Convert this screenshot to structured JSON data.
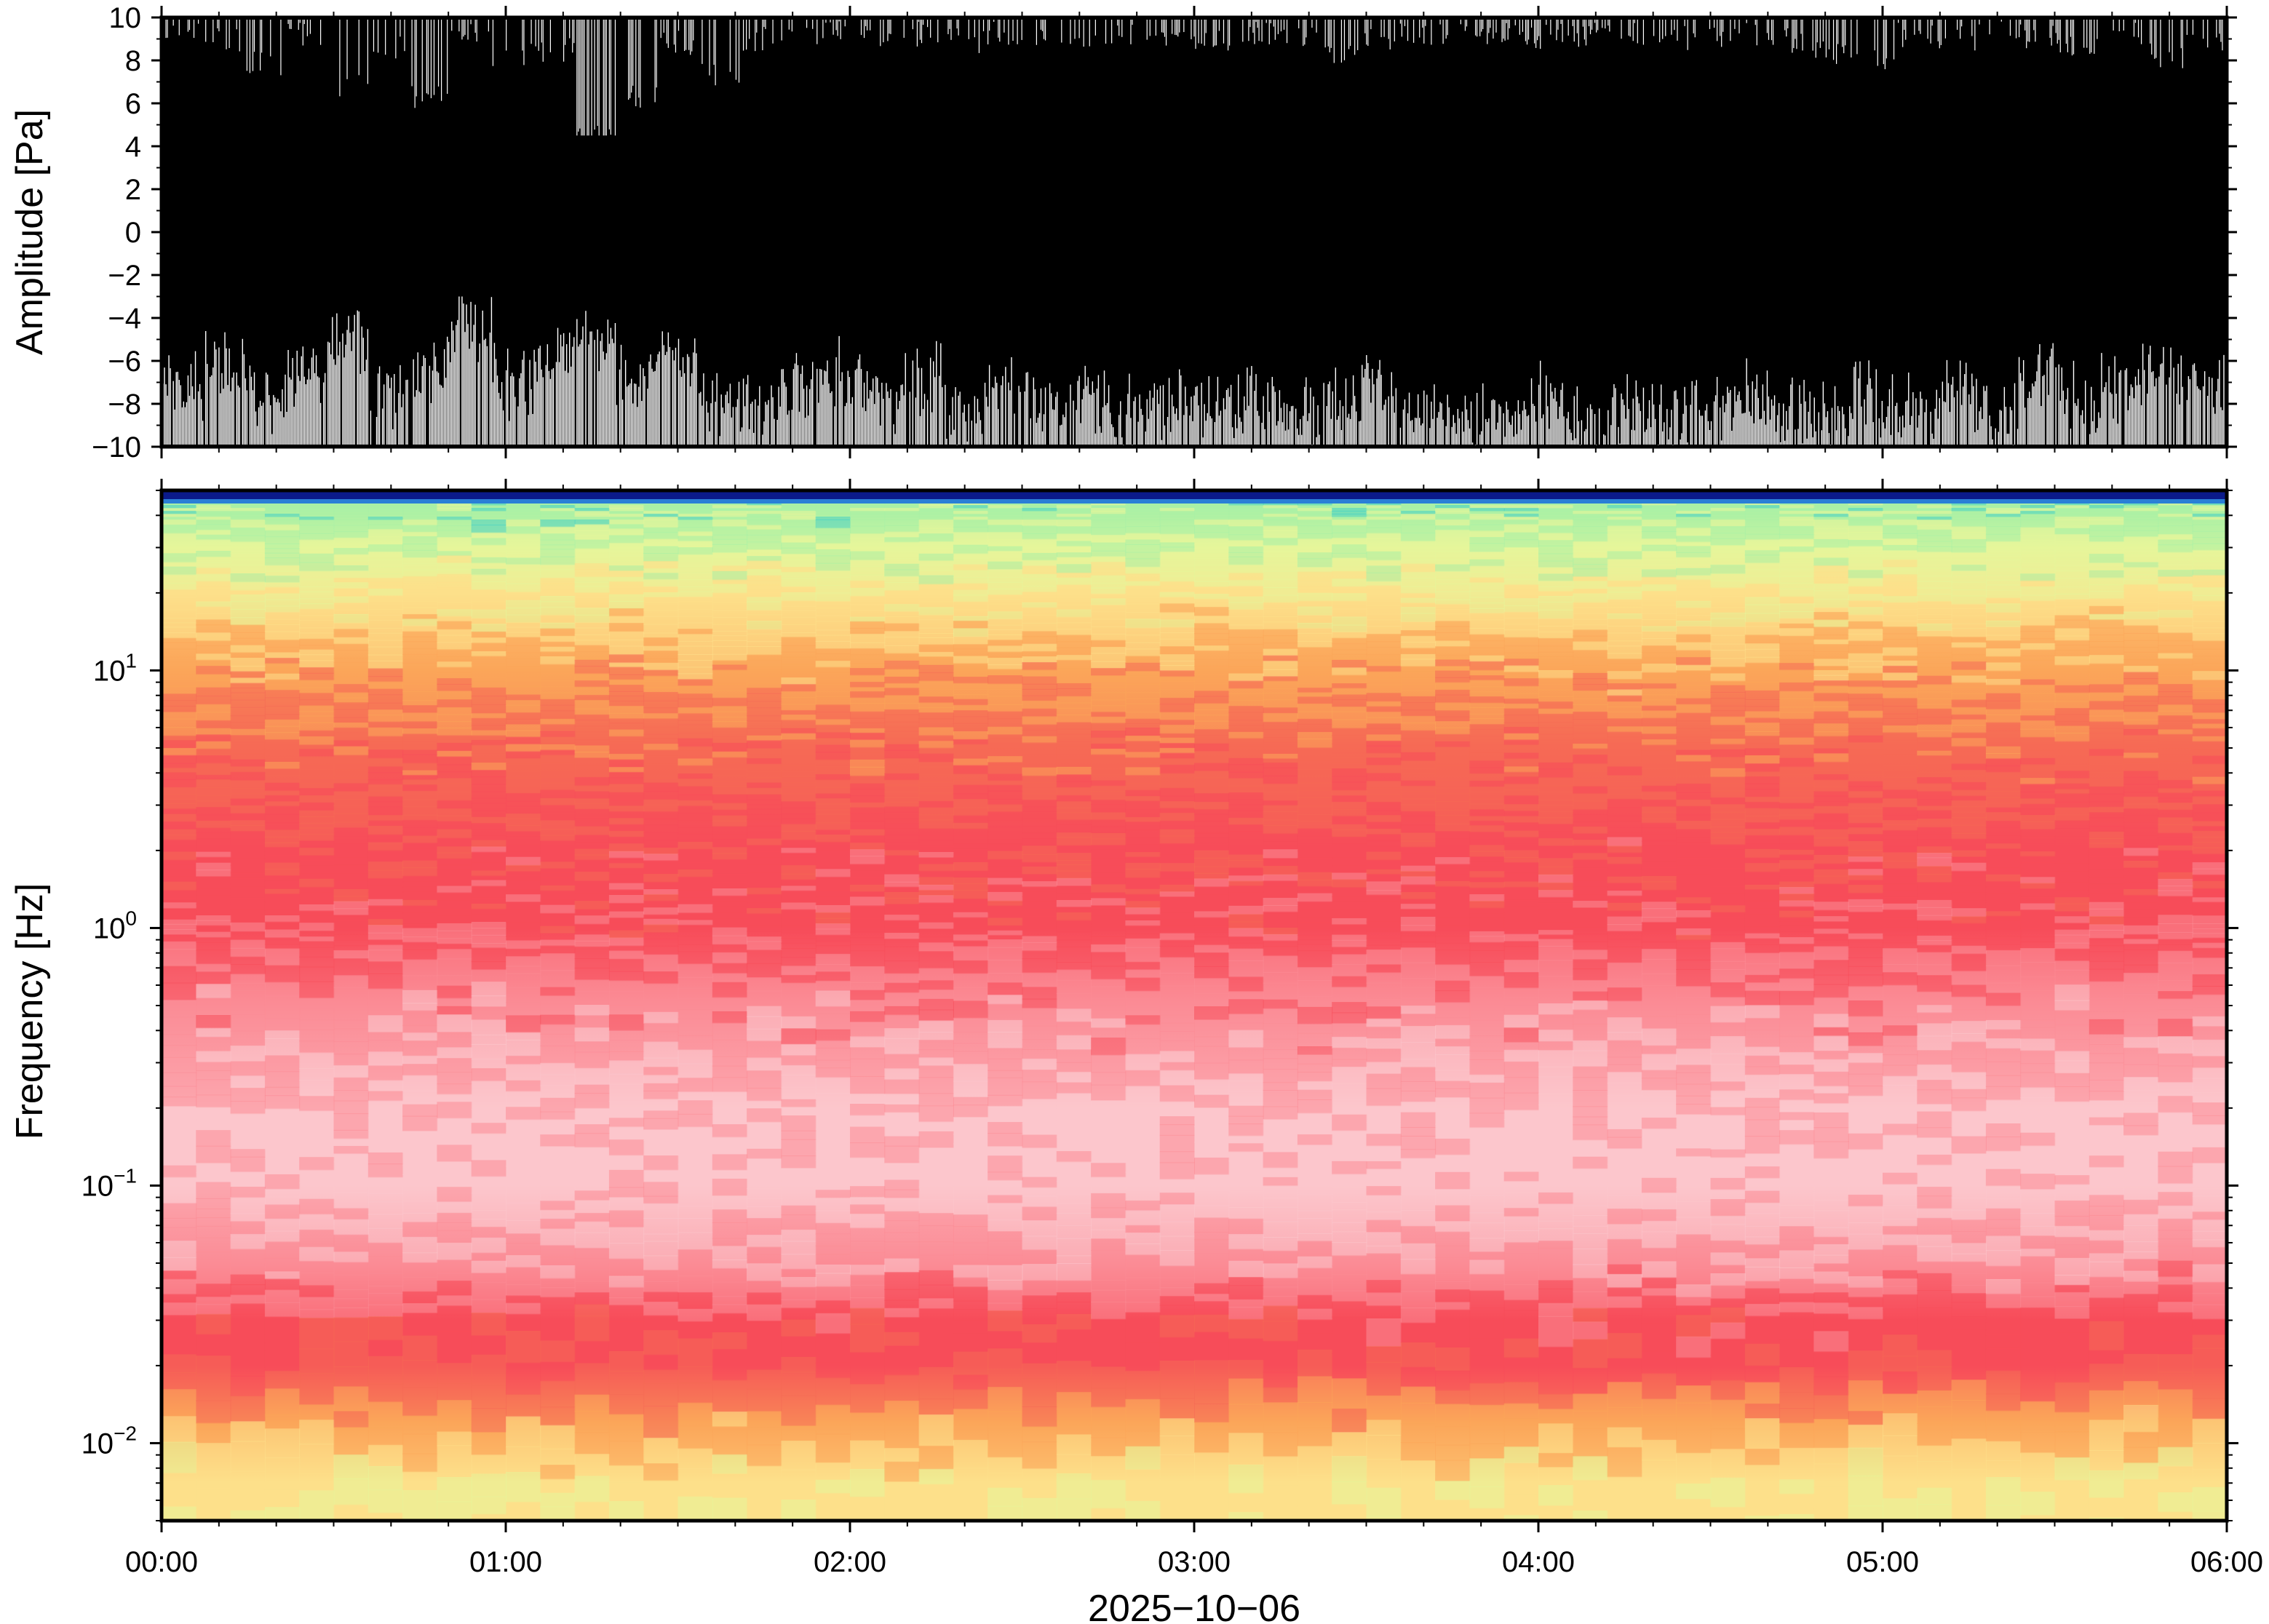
{
  "chart_data": [
    {
      "type": "line",
      "name": "waveform",
      "ylabel": "Amplitude [Pa]",
      "ylim": [
        -10,
        10
      ],
      "yticks": [
        10,
        8,
        6,
        4,
        2,
        0,
        -2,
        -4,
        -6,
        -8,
        -10
      ],
      "ytick_labels": [
        "10",
        "8",
        "6",
        "4",
        "2",
        "0",
        "−2",
        "−4",
        "−6",
        "−8",
        "−10"
      ],
      "xlim_hours": [
        0,
        6
      ],
      "line_color": "#000000",
      "envelope_note_omitted": false,
      "upper_envelope_sample": [
        10,
        9.5,
        8.5,
        9.8,
        7.5,
        9.2,
        6.8,
        9.9,
        8.9,
        9.1,
        5.0,
        7.0,
        9.4,
        8.0,
        9.6,
        9.8,
        9.9,
        9.7,
        9.8,
        9.5,
        9.9,
        9.8,
        9.7,
        9.9,
        9.8,
        9.6,
        9.9,
        9.8,
        9.0,
        9.7,
        9.9,
        9.8,
        9.9,
        9.7,
        9.8,
        9.9,
        9.6,
        9.8,
        9.9,
        9.5,
        9.0,
        8.5,
        9.8,
        9.6,
        9.9,
        9.7,
        9.2,
        9.8,
        8.8,
        9.5
      ],
      "lower_envelope_sample": [
        -6.5,
        -5.5,
        -7.0,
        -6.0,
        -4.5,
        -6.8,
        -5.8,
        -3.5,
        -6.2,
        -5.0,
        -4.2,
        -6.0,
        -5.2,
        -6.8,
        -7.5,
        -6.4,
        -5.8,
        -7.2,
        -6.0,
        -7.8,
        -6.5,
        -7.4,
        -6.8,
        -7.6,
        -7.0,
        -7.8,
        -7.2,
        -7.9,
        -7.0,
        -6.5,
        -7.6,
        -7.9,
        -7.4,
        -7.0,
        -8.0,
        -7.5,
        -7.8,
        -7.2,
        -6.8,
        -7.6,
        -7.9,
        -7.0,
        -7.5,
        -6.8,
        -7.8,
        -6.2,
        -7.0,
        -6.5,
        -5.8,
        -6.4
      ]
    },
    {
      "type": "heatmap",
      "name": "spectrogram",
      "ylabel": "Frequency [Hz]",
      "xlabel": "2025−10−06",
      "yscale": "log",
      "ylim": [
        0.005,
        50
      ],
      "yticks": [
        0.01,
        0.1,
        1,
        10
      ],
      "ytick_labels": [
        {
          "base": "10",
          "exp": "−2"
        },
        {
          "base": "10",
          "exp": "−1"
        },
        {
          "base": "10",
          "exp": "0"
        },
        {
          "base": "10",
          "exp": "1"
        }
      ],
      "xlim_hours": [
        0,
        6
      ],
      "xticks_hours": [
        0,
        1,
        2,
        3,
        4,
        5,
        6
      ],
      "xtick_labels": [
        "00:00",
        "01:00",
        "02:00",
        "03:00",
        "04:00",
        "05:00",
        "06:00"
      ],
      "colormap": [
        "#0b1a8a",
        "#2a7fd6",
        "#3fd0c6",
        "#a8f0a6",
        "#e6f59a",
        "#fde08a",
        "#fba65a",
        "#f66a55",
        "#f74c5a",
        "#fb8c96",
        "#fcc6cc"
      ],
      "frequency_rows_hz": [
        50,
        45,
        30,
        20,
        10,
        5,
        2,
        1,
        0.5,
        0.2,
        0.1,
        0.05,
        0.03,
        0.02,
        0.012,
        0.007
      ],
      "row_level_index": [
        0.0,
        3.0,
        3.5,
        4.5,
        6.0,
        7.0,
        7.8,
        8.2,
        9.0,
        9.6,
        9.9,
        9.4,
        8.0,
        7.6,
        6.0,
        4.6
      ]
    }
  ]
}
